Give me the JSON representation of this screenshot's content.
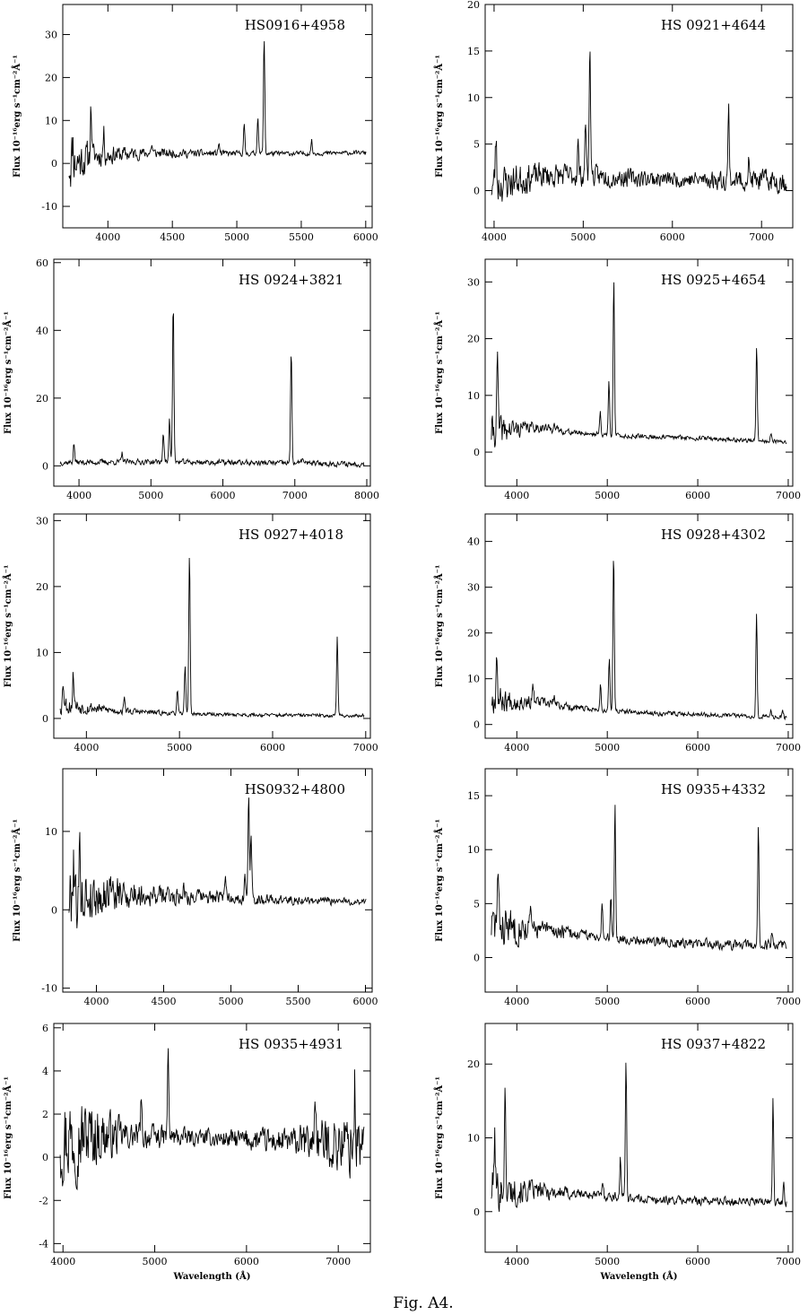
{
  "caption": "Fig. A4.",
  "chart_data": [
    {
      "type": "line",
      "title": "HS0916+4958",
      "ylabel": "Flux 10⁻¹⁶erg s⁻¹cm⁻²Å⁻¹",
      "xlabel": "",
      "xlim": [
        3650,
        6050
      ],
      "ylim": [
        -15,
        37
      ],
      "xticks": [
        4000,
        4500,
        5000,
        5500,
        6000
      ],
      "yticks": [
        -10,
        0,
        10,
        20,
        30
      ],
      "continuum": [
        [
          3700,
          0
        ],
        [
          3900,
          1.8
        ],
        [
          4300,
          2.4
        ],
        [
          4800,
          2.3
        ],
        [
          5500,
          2.3
        ],
        [
          6000,
          2.5
        ]
      ],
      "noise": [
        [
          3700,
          7
        ],
        [
          3900,
          3
        ],
        [
          4300,
          1.3
        ],
        [
          5000,
          0.7
        ],
        [
          6000,
          0.5
        ]
      ],
      "lines": [
        [
          3727,
          5
        ],
        [
          3869,
          12
        ],
        [
          3968,
          5
        ],
        [
          4340,
          2
        ],
        [
          4861,
          2.5
        ],
        [
          5057,
          6.5
        ],
        [
          5163,
          8.5
        ],
        [
          5212,
          27
        ],
        [
          5580,
          3
        ]
      ],
      "seed": 11
    },
    {
      "type": "line",
      "title": "HS  0921+4644",
      "ylabel": "Flux 10⁻¹⁶erg s⁻¹cm⁻²Å⁻¹",
      "xlabel": "",
      "xlim": [
        3900,
        7350
      ],
      "ylim": [
        -4,
        20
      ],
      "xticks": [
        4000,
        5000,
        6000,
        7000
      ],
      "yticks": [
        0,
        5,
        10,
        15,
        20
      ],
      "continuum": [
        [
          3950,
          0.5
        ],
        [
          4500,
          1.6
        ],
        [
          5000,
          1.6
        ],
        [
          6000,
          1.2
        ],
        [
          7000,
          1.1
        ],
        [
          7300,
          1.0
        ]
      ],
      "noise": [
        [
          3950,
          2.5
        ],
        [
          4500,
          1.5
        ],
        [
          6000,
          0.9
        ],
        [
          7300,
          1.4
        ]
      ],
      "lines": [
        [
          4020,
          5
        ],
        [
          4941,
          3.5
        ],
        [
          5027,
          6
        ],
        [
          5075,
          14.5
        ],
        [
          6631,
          7.5
        ],
        [
          6855,
          2
        ]
      ],
      "seed": 23
    },
    {
      "type": "line",
      "title": "HS  0924+3821",
      "ylabel": "Flux 10⁻¹⁶erg s⁻¹cm⁻²Å⁻¹",
      "xlabel": "",
      "xlim": [
        3650,
        8050
      ],
      "ylim": [
        -6,
        61
      ],
      "xticks": [
        4000,
        5000,
        6000,
        7000,
        8000
      ],
      "yticks": [
        0,
        20,
        40,
        60
      ],
      "continuum": [
        [
          3700,
          1.0
        ],
        [
          5000,
          1.2
        ],
        [
          6500,
          0.9
        ],
        [
          8000,
          0.5
        ]
      ],
      "noise": [
        [
          3700,
          0.9
        ],
        [
          8000,
          0.9
        ]
      ],
      "lines": [
        [
          3930,
          5.5
        ],
        [
          4600,
          2.5
        ],
        [
          5172,
          8.5
        ],
        [
          5258,
          13.5
        ],
        [
          5310,
          47.5
        ],
        [
          6950,
          33.5
        ],
        [
          7105,
          2
        ]
      ],
      "seed": 37
    },
    {
      "type": "line",
      "title": "HS  0925+4654",
      "ylabel": "Flux 10⁻¹⁶erg s⁻¹cm⁻²Å⁻¹",
      "xlabel": "",
      "xlim": [
        3650,
        7050
      ],
      "ylim": [
        -6,
        34
      ],
      "xticks": [
        4000,
        5000,
        6000,
        7000
      ],
      "yticks": [
        0,
        10,
        20,
        30
      ],
      "continuum": [
        [
          3700,
          3.5
        ],
        [
          4200,
          4.5
        ],
        [
          4600,
          3.5
        ],
        [
          5200,
          2.8
        ],
        [
          6000,
          2.5
        ],
        [
          6900,
          1.8
        ]
      ],
      "noise": [
        [
          3700,
          3.5
        ],
        [
          4100,
          1.2
        ],
        [
          4600,
          0.5
        ],
        [
          6900,
          0.4
        ]
      ],
      "lines": [
        [
          3785,
          13
        ],
        [
          4410,
          1.5
        ],
        [
          4922,
          4
        ],
        [
          5018,
          9.5
        ],
        [
          5072,
          28
        ],
        [
          6651,
          16.5
        ],
        [
          6810,
          1.5
        ]
      ],
      "seed": 41
    },
    {
      "type": "line",
      "title": "HS  0927+4018",
      "ylabel": "Flux 10⁻¹⁶erg s⁻¹cm⁻²Å⁻¹",
      "xlabel": "",
      "xlim": [
        3650,
        7050
      ],
      "ylim": [
        -3,
        31
      ],
      "xticks": [
        4000,
        5000,
        6000,
        7000
      ],
      "yticks": [
        0,
        10,
        20,
        30
      ],
      "continuum": [
        [
          3700,
          2.2
        ],
        [
          4300,
          1.2
        ],
        [
          5000,
          0.7
        ],
        [
          6000,
          0.5
        ],
        [
          7000,
          0.4
        ]
      ],
      "noise": [
        [
          3700,
          1.8
        ],
        [
          4200,
          0.7
        ],
        [
          5000,
          0.3
        ],
        [
          7000,
          0.3
        ]
      ],
      "lines": [
        [
          3752,
          3.5
        ],
        [
          3860,
          5
        ],
        [
          4410,
          2
        ],
        [
          4977,
          3.5
        ],
        [
          5060,
          7.5
        ],
        [
          5107,
          24.5
        ],
        [
          6694,
          12
        ]
      ],
      "seed": 53
    },
    {
      "type": "line",
      "title": "HS  0928+4302",
      "ylabel": "Flux 10⁻¹⁶erg s⁻¹cm⁻²Å⁻¹",
      "xlabel": "",
      "xlim": [
        3650,
        7050
      ],
      "ylim": [
        -3,
        46
      ],
      "xticks": [
        4000,
        5000,
        6000,
        7000
      ],
      "yticks": [
        0,
        10,
        20,
        30,
        40
      ],
      "continuum": [
        [
          3700,
          5.5
        ],
        [
          4200,
          5.0
        ],
        [
          4700,
          3.5
        ],
        [
          5400,
          2.5
        ],
        [
          6000,
          2.3
        ],
        [
          7000,
          1.5
        ]
      ],
      "noise": [
        [
          3700,
          3.5
        ],
        [
          4200,
          1.4
        ],
        [
          4800,
          0.6
        ],
        [
          7000,
          0.5
        ]
      ],
      "lines": [
        [
          3778,
          11
        ],
        [
          4180,
          3
        ],
        [
          4410,
          2
        ],
        [
          4925,
          5.5
        ],
        [
          5022,
          11.5
        ],
        [
          5070,
          35
        ],
        [
          6650,
          22.5
        ],
        [
          6810,
          1.5
        ],
        [
          6940,
          1.5
        ]
      ],
      "seed": 67
    },
    {
      "type": "line",
      "title": "HS0932+4800",
      "ylabel": "Flux 10⁻¹⁶erg s⁻¹cm⁻²Å⁻¹",
      "xlabel": "",
      "xlim": [
        3750,
        6050
      ],
      "ylim": [
        -10.5,
        18
      ],
      "xticks": [
        4000,
        4500,
        5000,
        5500,
        6000
      ],
      "yticks": [
        -10,
        0,
        10
      ],
      "continuum": [
        [
          3800,
          1.5
        ],
        [
          4200,
          2.0
        ],
        [
          4800,
          1.6
        ],
        [
          5500,
          1.2
        ],
        [
          6000,
          1.0
        ]
      ],
      "noise": [
        [
          3800,
          5
        ],
        [
          4000,
          3
        ],
        [
          4400,
          1.5
        ],
        [
          5000,
          0.8
        ],
        [
          6000,
          0.5
        ]
      ],
      "lines": [
        [
          3830,
          6
        ],
        [
          3878,
          6
        ],
        [
          4100,
          3
        ],
        [
          4650,
          2
        ],
        [
          4960,
          3
        ],
        [
          5104,
          3.5
        ],
        [
          5132,
          13
        ],
        [
          5150,
          8
        ]
      ],
      "seed": 79
    },
    {
      "type": "line",
      "title": "HS  0935+4332",
      "ylabel": "Flux 10⁻¹⁶erg s⁻¹cm⁻²Å⁻¹",
      "xlabel": "",
      "xlim": [
        3650,
        7050
      ],
      "ylim": [
        -3.2,
        17.5
      ],
      "xticks": [
        4000,
        5000,
        6000,
        7000
      ],
      "yticks": [
        0,
        5,
        10,
        15
      ],
      "continuum": [
        [
          3700,
          3.0
        ],
        [
          4300,
          2.6
        ],
        [
          5000,
          1.8
        ],
        [
          6000,
          1.3
        ],
        [
          6700,
          1.1
        ],
        [
          7000,
          1.3
        ]
      ],
      "noise": [
        [
          3700,
          2.5
        ],
        [
          4200,
          1.0
        ],
        [
          4800,
          0.5
        ],
        [
          7000,
          0.5
        ]
      ],
      "lines": [
        [
          3790,
          4.5
        ],
        [
          4150,
          1.5
        ],
        [
          4942,
          3.5
        ],
        [
          5040,
          4
        ],
        [
          5085,
          12.5
        ],
        [
          6670,
          11
        ],
        [
          6820,
          1.2
        ]
      ],
      "seed": 83
    },
    {
      "type": "line",
      "title": "HS  0935+4931",
      "ylabel": "Flux 10⁻¹⁶erg s⁻¹cm⁻²Å⁻¹",
      "xlabel": "Wavelength (Å)",
      "xlim": [
        3900,
        7350
      ],
      "ylim": [
        -4.4,
        6.2
      ],
      "xticks": [
        4000,
        5000,
        6000,
        7000
      ],
      "yticks": [
        -4,
        -2,
        0,
        2,
        4,
        6
      ],
      "continuum": [
        [
          3950,
          1.0
        ],
        [
          4500,
          1.0
        ],
        [
          5500,
          0.9
        ],
        [
          6500,
          0.7
        ],
        [
          7300,
          0.6
        ]
      ],
      "noise": [
        [
          3950,
          2.5
        ],
        [
          4300,
          1.8
        ],
        [
          4700,
          0.7
        ],
        [
          5500,
          0.4
        ],
        [
          6500,
          0.7
        ],
        [
          7300,
          1.9
        ]
      ],
      "lines": [
        [
          5146,
          3.8
        ],
        [
          4852,
          1.5
        ],
        [
          6750,
          2.5
        ],
        [
          7180,
          2.5
        ]
      ],
      "seed": 97
    },
    {
      "type": "line",
      "title": "HS  0937+4822",
      "ylabel": "Flux 10⁻¹⁶erg s⁻¹cm⁻²Å⁻¹",
      "xlabel": "Wavelength (Å)",
      "xlim": [
        3650,
        7050
      ],
      "ylim": [
        -5.5,
        25.5
      ],
      "xticks": [
        4000,
        5000,
        6000,
        7000
      ],
      "yticks": [
        0,
        10,
        20
      ],
      "continuum": [
        [
          3700,
          3.0
        ],
        [
          4200,
          2.8
        ],
        [
          4800,
          2.3
        ],
        [
          5500,
          1.6
        ],
        [
          6500,
          1.4
        ],
        [
          7000,
          1.2
        ]
      ],
      "noise": [
        [
          3700,
          3.5
        ],
        [
          4200,
          1.4
        ],
        [
          4800,
          0.7
        ],
        [
          7000,
          0.6
        ]
      ],
      "lines": [
        [
          3755,
          7
        ],
        [
          3869,
          12.5
        ],
        [
          4950,
          2
        ],
        [
          5145,
          5.5
        ],
        [
          5207,
          18.5
        ],
        [
          6832,
          14
        ],
        [
          6950,
          3
        ]
      ],
      "seed": 101
    }
  ]
}
